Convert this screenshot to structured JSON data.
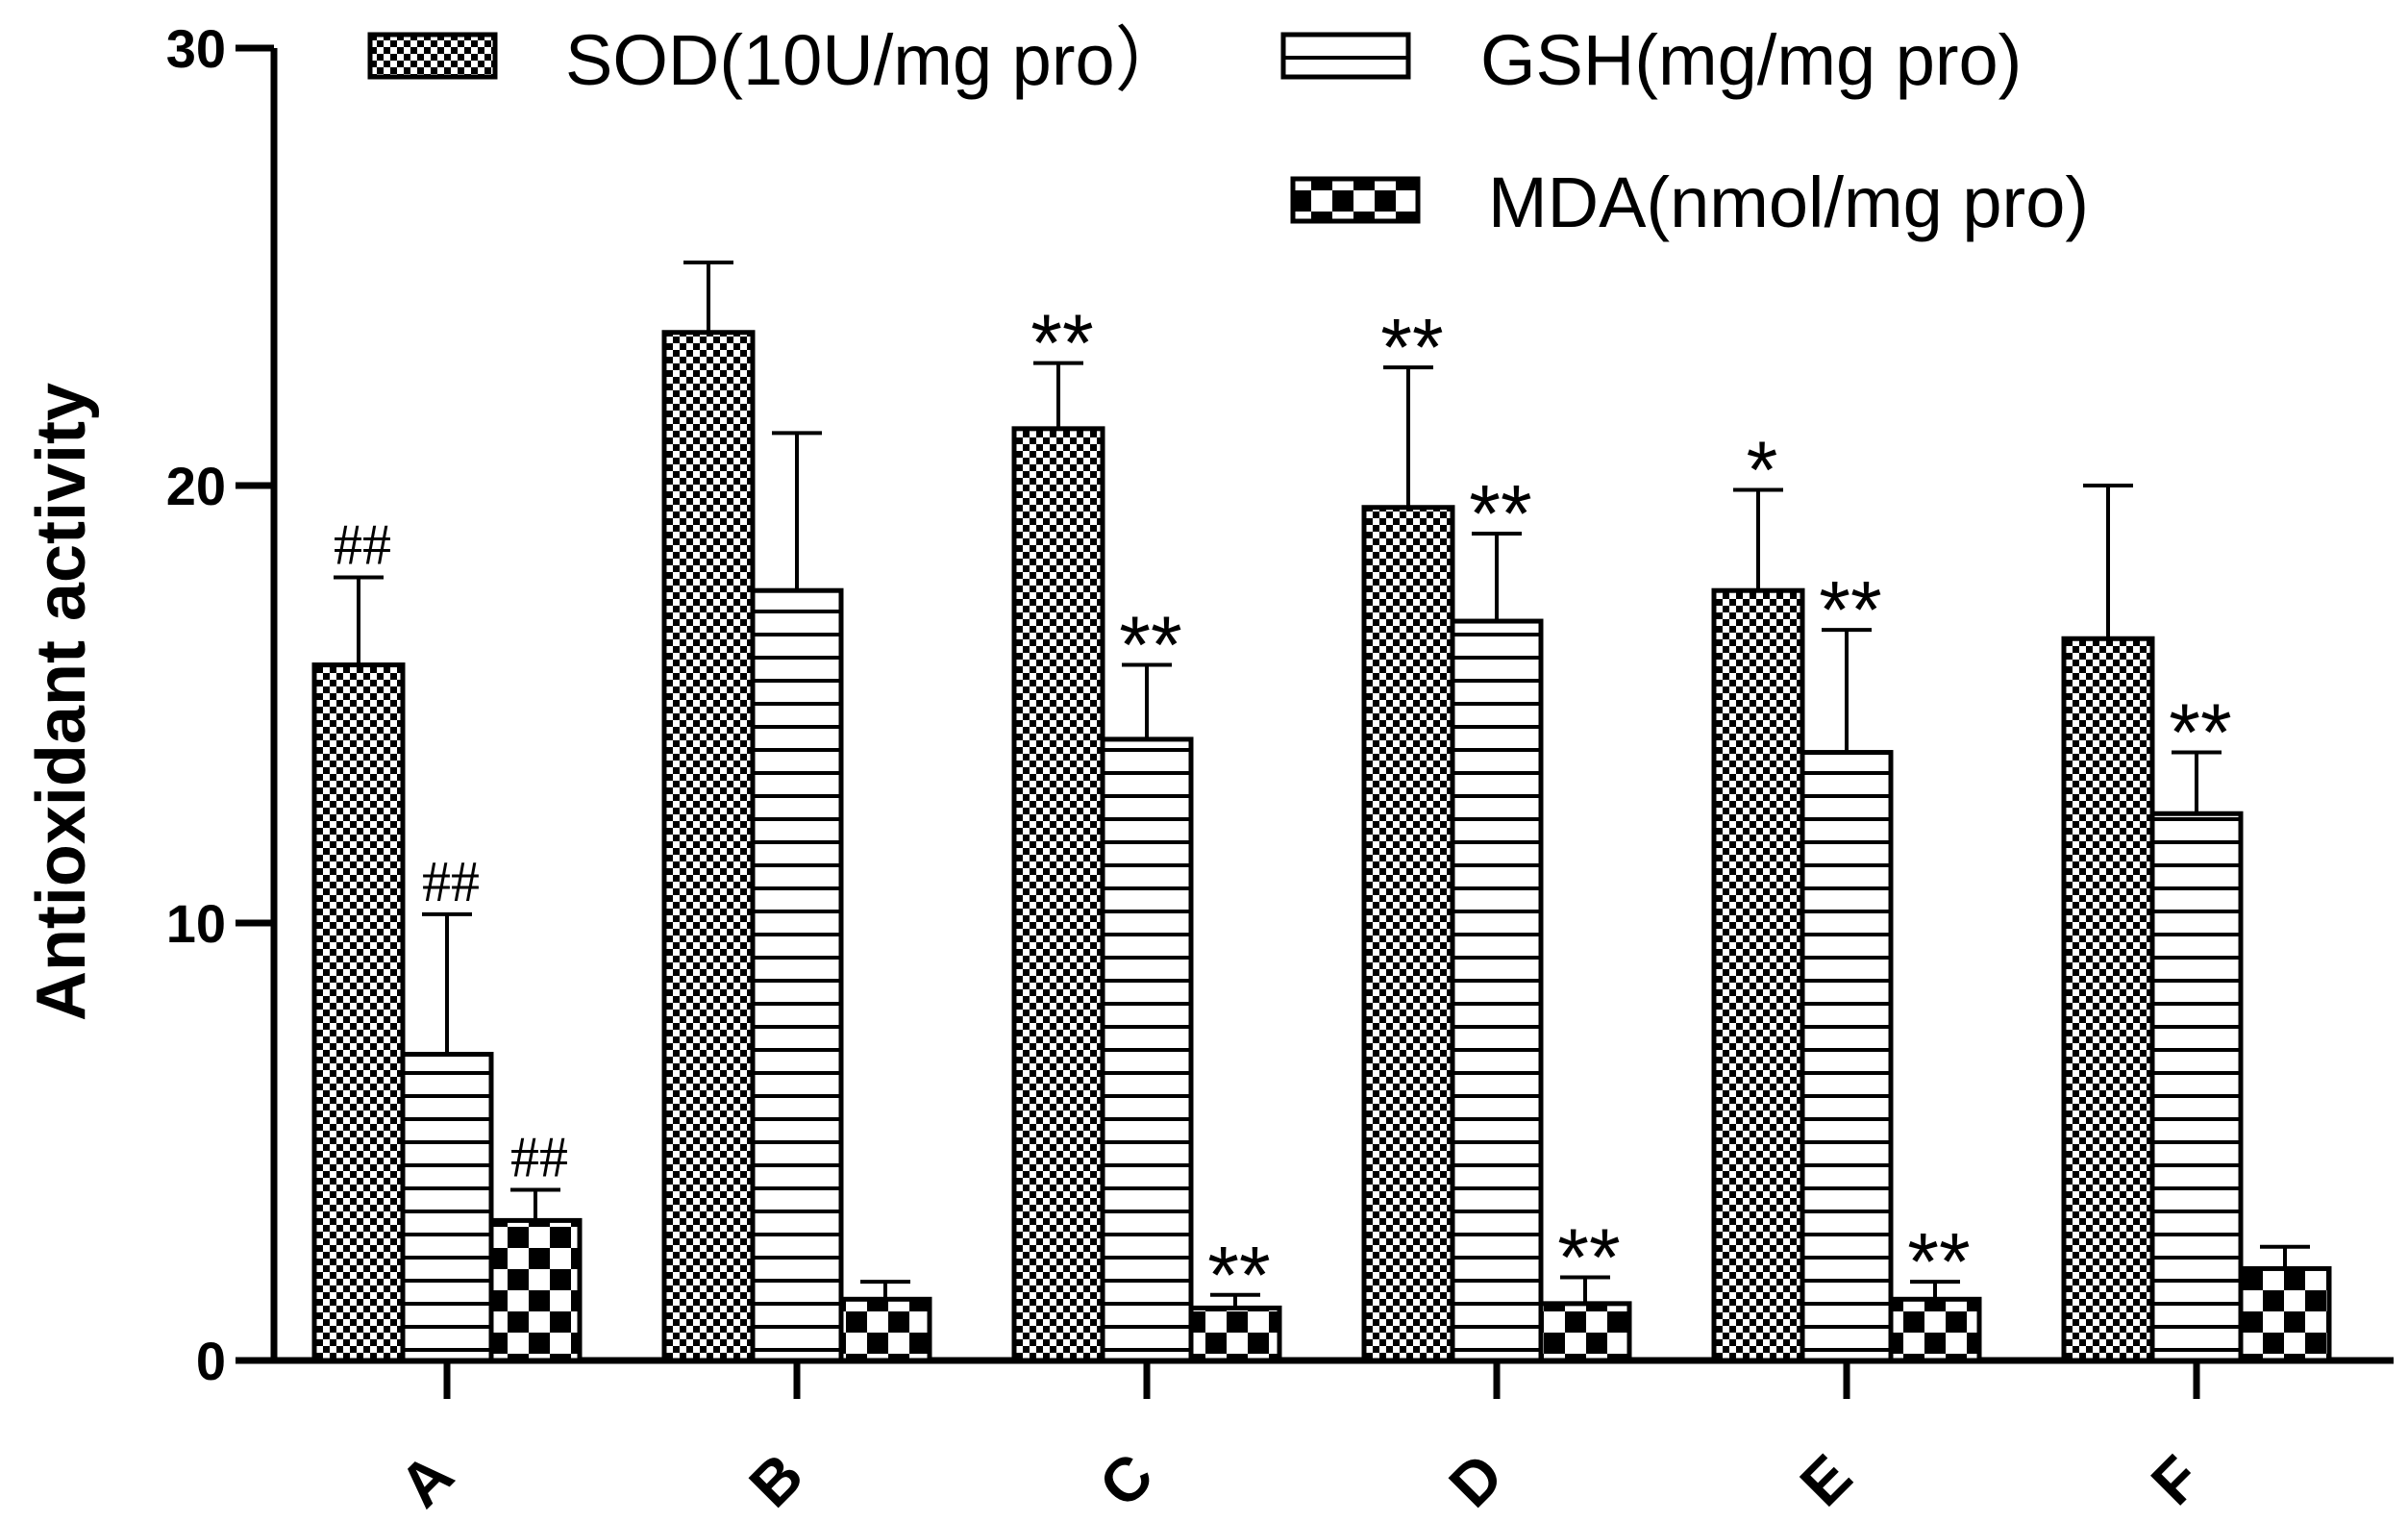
{
  "chart_data": {
    "type": "bar",
    "ylabel": "Antioxidant activity",
    "ylim": [
      0,
      30
    ],
    "yticks": [
      "0",
      "10",
      "20",
      "30"
    ],
    "categories": [
      "A",
      "B",
      "C",
      "D",
      "E",
      "F"
    ],
    "legend_position": "top",
    "series": [
      {
        "name": "SOD(10U/mg pro）",
        "pattern": "fine-checker",
        "values": [
          15.9,
          23.5,
          21.3,
          19.5,
          17.6,
          16.5
        ],
        "errors": [
          2.0,
          1.6,
          1.5,
          3.2,
          2.3,
          3.5
        ],
        "annotations": [
          "##",
          "",
          "**",
          "**",
          "*",
          ""
        ]
      },
      {
        "name": "GSH(mg/mg pro)",
        "pattern": "horizontal-lines",
        "values": [
          7.0,
          17.6,
          14.2,
          16.9,
          13.9,
          12.5
        ],
        "errors": [
          3.2,
          3.6,
          1.7,
          2.0,
          2.8,
          1.4
        ],
        "annotations": [
          "##",
          "",
          "**",
          "**",
          "**",
          "**"
        ]
      },
      {
        "name": "MDA(nmol/mg pro)",
        "pattern": "coarse-checker",
        "values": [
          3.2,
          1.4,
          1.2,
          1.3,
          1.4,
          2.1
        ],
        "errors": [
          0.7,
          0.4,
          0.3,
          0.6,
          0.4,
          0.5
        ],
        "annotations": [
          "##",
          "",
          "**",
          "**",
          "**",
          ""
        ]
      }
    ]
  }
}
